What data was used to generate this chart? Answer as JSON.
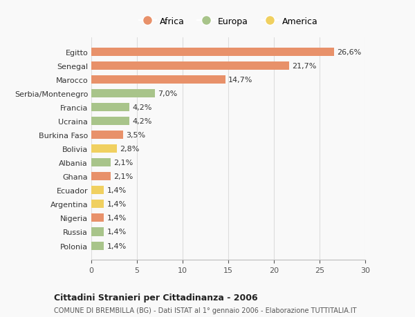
{
  "categories": [
    "Polonia",
    "Russia",
    "Nigeria",
    "Argentina",
    "Ecuador",
    "Ghana",
    "Albania",
    "Bolivia",
    "Burkina Faso",
    "Ucraina",
    "Francia",
    "Serbia/Montenegro",
    "Marocco",
    "Senegal",
    "Egitto"
  ],
  "values": [
    1.4,
    1.4,
    1.4,
    1.4,
    1.4,
    2.1,
    2.1,
    2.8,
    3.5,
    4.2,
    4.2,
    7.0,
    14.7,
    21.7,
    26.6
  ],
  "colors": [
    "#a8c48a",
    "#a8c48a",
    "#e8916a",
    "#f0d060",
    "#f0d060",
    "#e8916a",
    "#a8c48a",
    "#f0d060",
    "#e8916a",
    "#a8c48a",
    "#a8c48a",
    "#a8c48a",
    "#e8916a",
    "#e8916a",
    "#e8916a"
  ],
  "labels": [
    "1,4%",
    "1,4%",
    "1,4%",
    "1,4%",
    "1,4%",
    "2,1%",
    "2,1%",
    "2,8%",
    "3,5%",
    "4,2%",
    "4,2%",
    "7,0%",
    "14,7%",
    "21,7%",
    "26,6%"
  ],
  "legend": [
    {
      "label": "Africa",
      "color": "#e8916a"
    },
    {
      "label": "Europa",
      "color": "#a8c48a"
    },
    {
      "label": "America",
      "color": "#f0d060"
    }
  ],
  "xlim": [
    0,
    30
  ],
  "xticks": [
    0,
    5,
    10,
    15,
    20,
    25,
    30
  ],
  "title": "Cittadini Stranieri per Cittadinanza - 2006",
  "subtitle": "COMUNE DI BREMBILLA (BG) - Dati ISTAT al 1° gennaio 2006 - Elaborazione TUTTITALIA.IT",
  "background_color": "#f9f9f9",
  "grid_color": "#dddddd"
}
